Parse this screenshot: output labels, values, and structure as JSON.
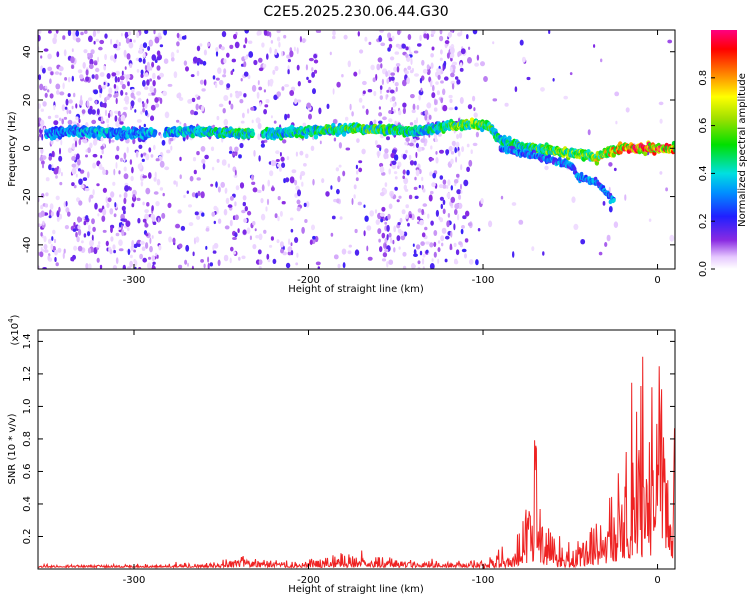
{
  "title": "C2E5.2025.230.06.44.G30",
  "chart_data": [
    {
      "type": "heatmap",
      "xlabel": "Height of straight line (km)",
      "ylabel": "Frequency (Hz)",
      "xlim": [
        -355,
        10
      ],
      "ylim": [
        -50,
        49
      ],
      "xticks": [
        -300,
        -200,
        -100,
        0
      ],
      "yticks": [
        -40,
        -20,
        0,
        20,
        40
      ],
      "grid": false,
      "colorbar": {
        "label": "Normalized spectral amplitude",
        "range": [
          0,
          1
        ],
        "ticks": [
          0.0,
          0.2,
          0.4,
          0.6,
          0.8
        ]
      },
      "ridge": {
        "name": "dominant frequency trace",
        "x": [
          -350,
          -340,
          -320,
          -300,
          -280,
          -260,
          -240,
          -220,
          -200,
          -180,
          -160,
          -140,
          -120,
          -110,
          -100,
          -95,
          -90,
          -80,
          -70,
          -60,
          -50,
          -40,
          -35,
          -30,
          -20,
          -10,
          0,
          10
        ],
        "y": [
          6,
          7,
          7,
          6,
          7,
          7,
          6,
          6,
          7,
          8,
          8,
          7,
          9,
          10,
          10,
          8,
          3,
          1,
          0,
          -1,
          -2,
          -3,
          -4,
          -2,
          0,
          0,
          0,
          0
        ],
        "amplitude": [
          0.35,
          0.35,
          0.4,
          0.35,
          0.4,
          0.45,
          0.5,
          0.45,
          0.5,
          0.55,
          0.55,
          0.45,
          0.55,
          0.65,
          0.6,
          0.55,
          0.45,
          0.5,
          0.55,
          0.6,
          0.6,
          0.65,
          0.7,
          0.75,
          0.85,
          0.95,
          0.9,
          0.8
        ]
      },
      "secondary_branch": {
        "x": [
          -90,
          -70,
          -50,
          -45,
          -35,
          -30,
          -25
        ],
        "y": [
          0,
          -3,
          -7,
          -12,
          -14,
          -18,
          -22
        ]
      }
    },
    {
      "type": "line",
      "xlabel": "Height of straight line (km)",
      "ylabel": "SNR (10 * v/v)",
      "y_multiplier": "(x10",
      "y_multiplier_exp": "4",
      "ylim": [
        0,
        1.47
      ],
      "xlim": [
        -355,
        10
      ],
      "xticks": [
        -300,
        -200,
        -100,
        0
      ],
      "yticks": [
        0.2,
        0.4,
        0.6,
        0.8,
        1.0,
        1.2,
        1.4
      ],
      "color": "#ee2222",
      "envelope": {
        "x": [
          -355,
          -300,
          -260,
          -245,
          -235,
          -225,
          -210,
          -200,
          -190,
          -180,
          -160,
          -140,
          -120,
          -110,
          -100,
          -95,
          -90,
          -85,
          -80,
          -76,
          -72,
          -70,
          -68,
          -65,
          -60,
          -55,
          -50,
          -45,
          -40,
          -35,
          -30,
          -27,
          -25,
          -22,
          -20,
          -17,
          -15,
          -12,
          -10,
          -8,
          -5,
          -2,
          0,
          3,
          6,
          10
        ],
        "y": [
          0.03,
          0.03,
          0.04,
          0.07,
          0.1,
          0.06,
          0.05,
          0.06,
          0.1,
          0.12,
          0.08,
          0.06,
          0.05,
          0.06,
          0.08,
          0.1,
          0.16,
          0.18,
          0.35,
          0.55,
          0.7,
          1.08,
          0.75,
          0.52,
          0.28,
          0.15,
          0.2,
          0.24,
          0.3,
          0.32,
          0.45,
          0.68,
          0.7,
          0.9,
          1.0,
          1.12,
          1.38,
          1.45,
          1.44,
          1.3,
          1.46,
          1.3,
          1.43,
          1.44,
          1.3,
          1.2
        ]
      }
    }
  ]
}
